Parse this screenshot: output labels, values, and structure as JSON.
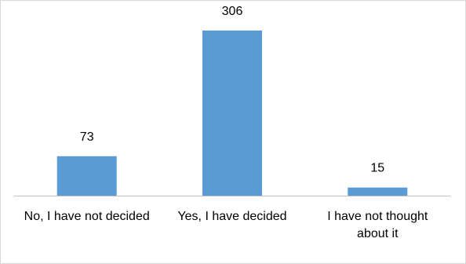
{
  "chart_data": {
    "type": "bar",
    "categories": [
      [
        "No, I have not decided"
      ],
      [
        "Yes, I have decided"
      ],
      [
        "I have not thought",
        "about it"
      ]
    ],
    "values": [
      73,
      306,
      15
    ],
    "data_labels": [
      "73",
      "306",
      "15"
    ],
    "title": "",
    "xlabel": "",
    "ylabel": "",
    "ylim": [
      0,
      320
    ],
    "grid": false,
    "legend": "none",
    "bar_color": "#5b9bd5",
    "axis_color": "#bfbfbf"
  }
}
